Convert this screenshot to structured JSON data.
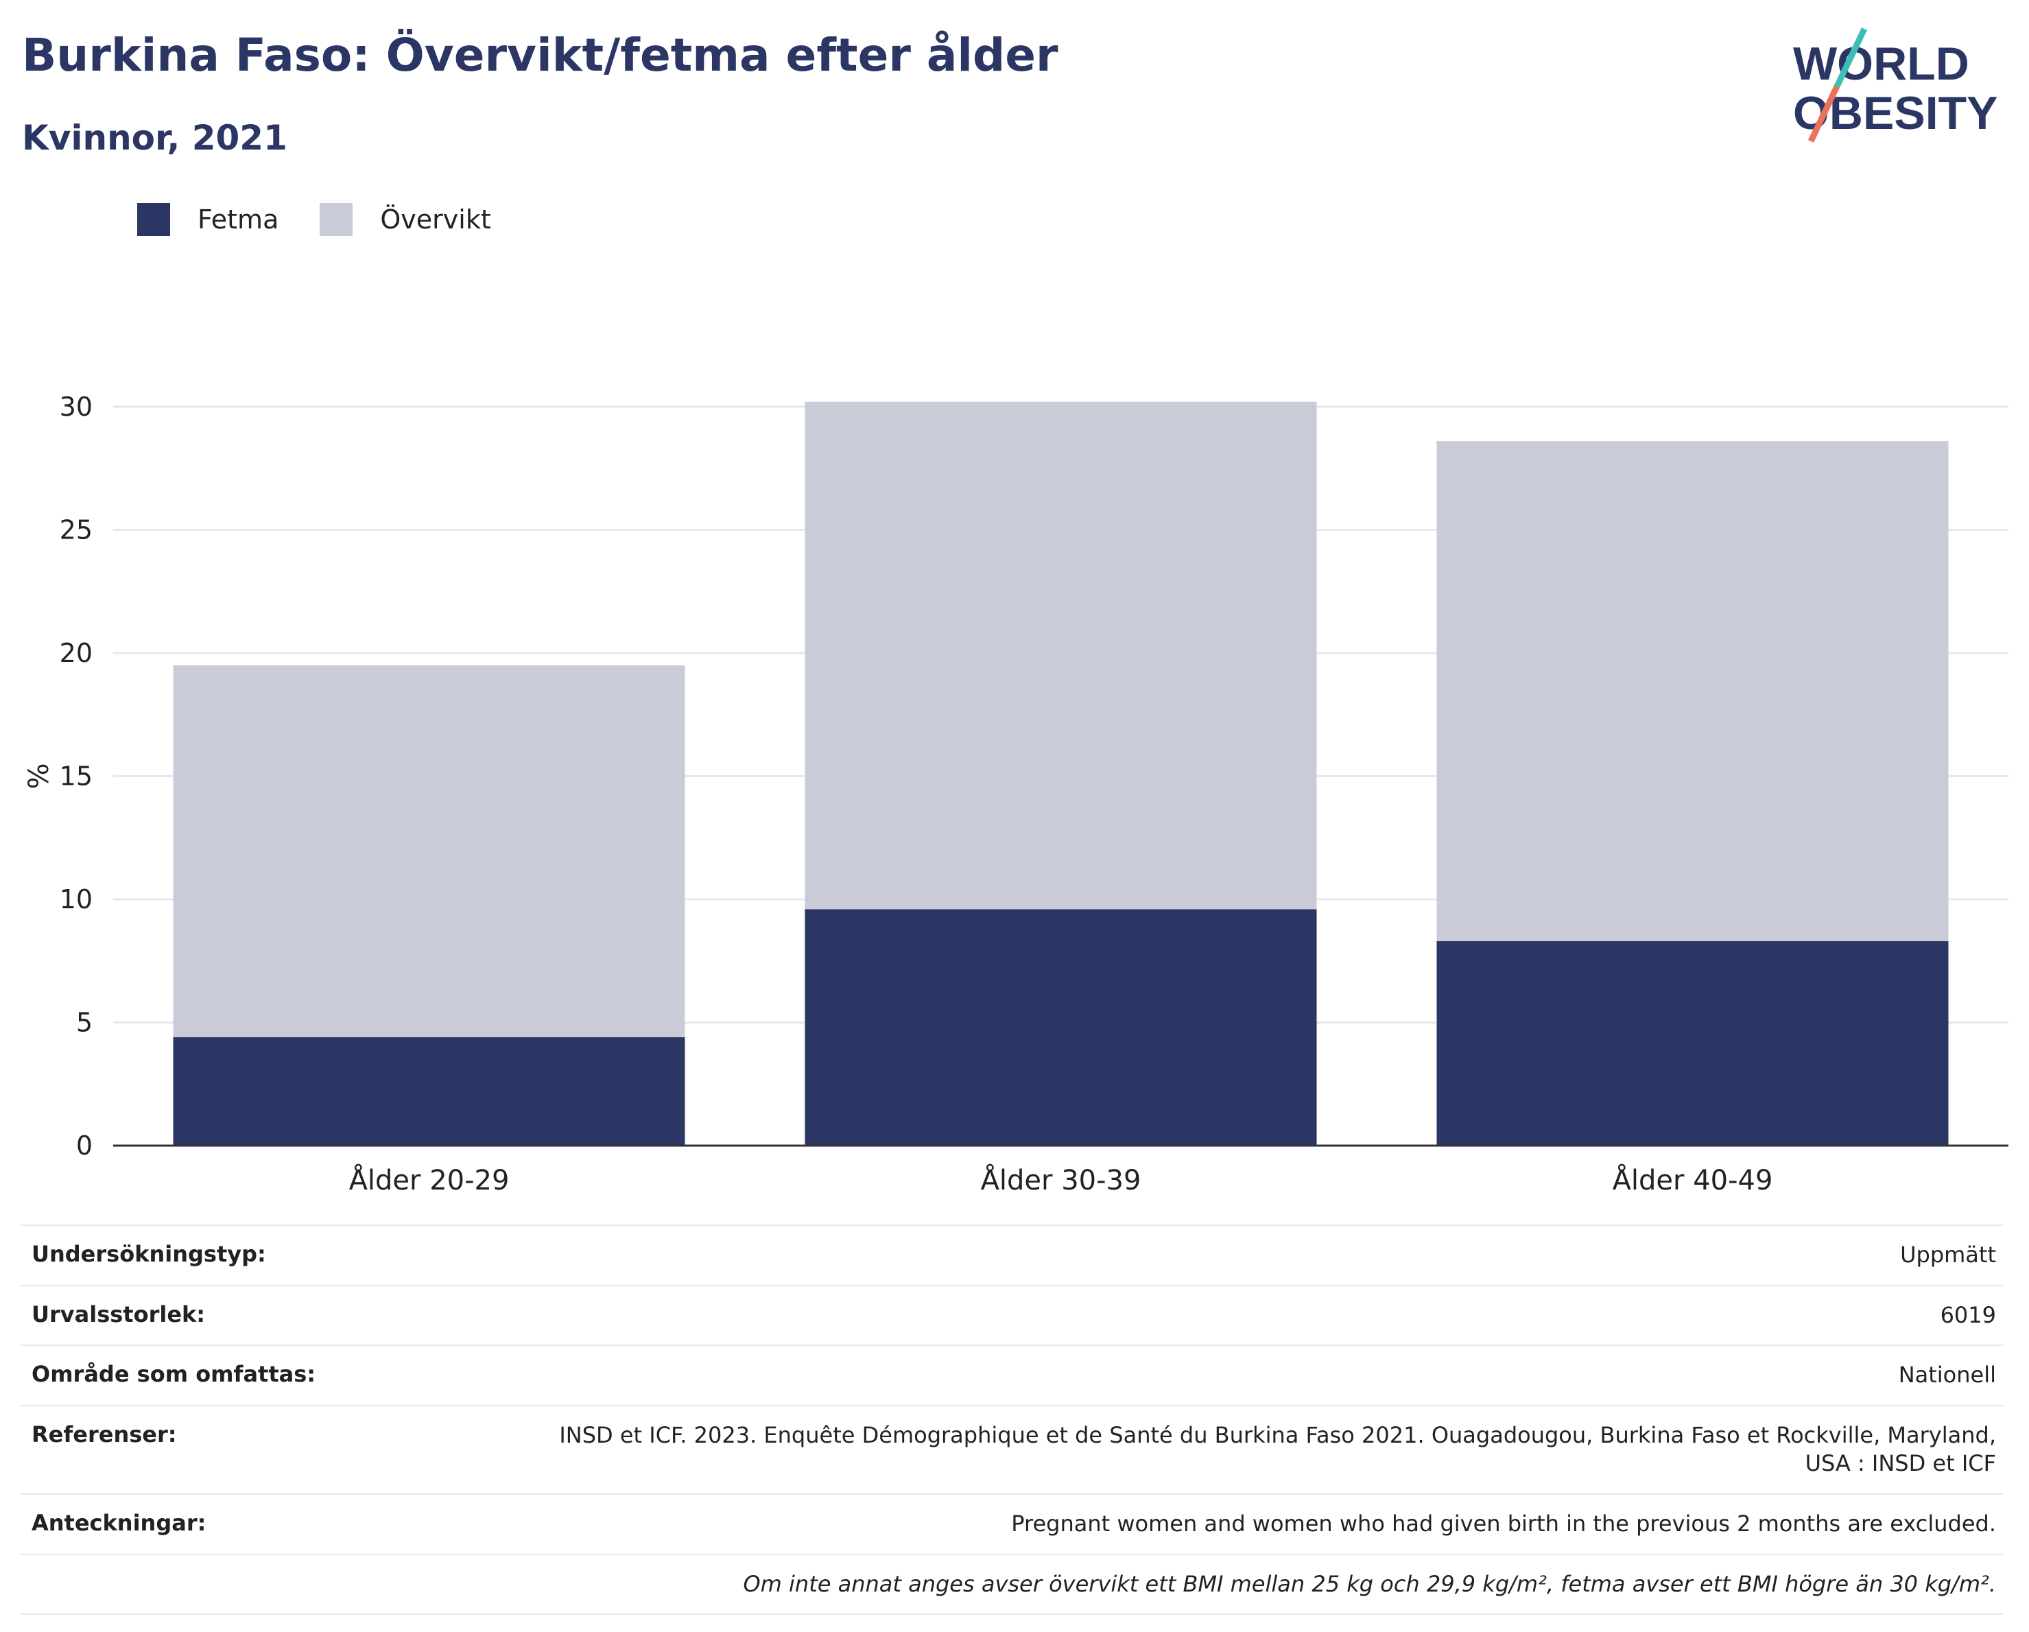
{
  "title": "Burkina Faso: Övervikt/fetma efter ålder",
  "subtitle": "Kvinnor, 2021",
  "logo": {
    "line1": "WORLD",
    "line2": "OBESITY",
    "colors": {
      "text": "#2b3664",
      "slash_top": "#3dbfb8",
      "slash_bottom": "#e8735a"
    }
  },
  "colors": {
    "fetma": "#2b3664",
    "overvikt": "#c9ccd7",
    "grid": "#e8e8ec",
    "axis": "#333333"
  },
  "chart_data": {
    "type": "bar",
    "stacked": true,
    "categories": [
      "Ålder 20-29",
      "Ålder 30-39",
      "Ålder 40-49"
    ],
    "series": [
      {
        "name": "Fetma",
        "values": [
          4.4,
          9.6,
          8.3
        ]
      },
      {
        "name": "Övervikt",
        "values": [
          15.1,
          20.6,
          20.3
        ]
      }
    ],
    "ylabel": "%",
    "ylim": [
      0,
      32
    ],
    "yticks": [
      0,
      5,
      10,
      15,
      20,
      25,
      30
    ],
    "grid": true,
    "legend": "top-left"
  },
  "info": {
    "rows": [
      {
        "label": "Undersökningstyp:",
        "value": "Uppmätt"
      },
      {
        "label": "Urvalsstorlek:",
        "value": "6019"
      },
      {
        "label": "Område som omfattas:",
        "value": "Nationell"
      },
      {
        "label": "Referenser:",
        "value": "INSD et ICF. 2023. Enquête Démographique et de Santé du Burkina Faso 2021. Ouagadougou, Burkina Faso et Rockville, Maryland, USA : INSD et ICF"
      },
      {
        "label": "Anteckningar:",
        "value": "Pregnant women and women who had given birth in the previous 2 months are excluded."
      }
    ],
    "footnote": "Om inte annat anges avser övervikt ett BMI mellan 25 kg och 29,9 kg/m², fetma avser ett BMI högre än 30 kg/m²."
  }
}
